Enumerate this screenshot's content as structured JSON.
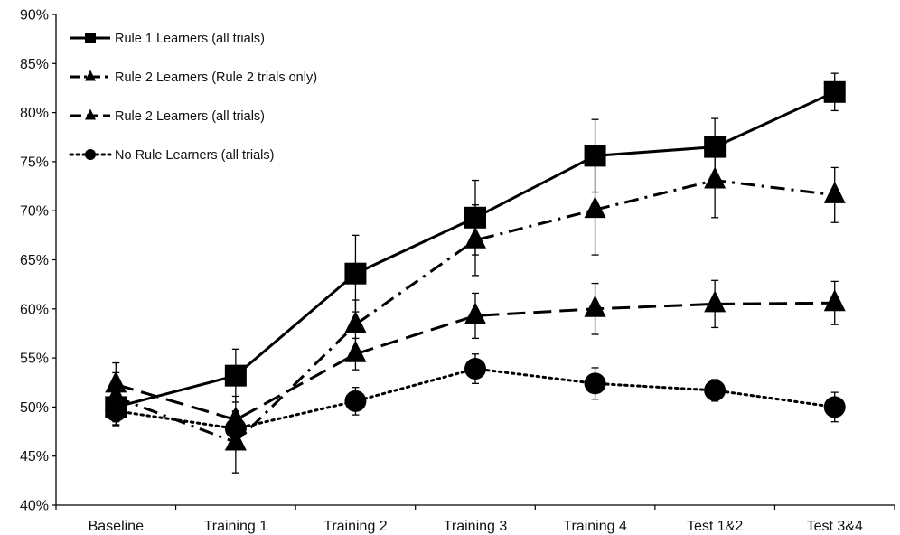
{
  "chart_data": {
    "type": "line",
    "categories": [
      "Baseline",
      "Training 1",
      "Training 2",
      "Training 3",
      "Training 4",
      "Test 1&2",
      "Test 3&4"
    ],
    "ylim": [
      40,
      90
    ],
    "yticks": [
      40,
      45,
      50,
      55,
      60,
      65,
      70,
      75,
      80,
      85,
      90
    ],
    "ytick_suffix": "%",
    "legend_position": "top-left",
    "grid": false,
    "series": [
      {
        "name": "Rule 1 Learners (all trials)",
        "marker": "square",
        "line_style": "solid",
        "color": "#000000",
        "values": [
          50.0,
          53.2,
          63.6,
          69.3,
          75.6,
          76.5,
          82.1
        ],
        "error": [
          1.9,
          2.7,
          3.9,
          3.8,
          3.7,
          2.9,
          1.9
        ]
      },
      {
        "name": "Rule 2 Learners (Rule 2 trials only)",
        "marker": "triangle",
        "line_style": "dash-dot",
        "color": "#000000",
        "values": [
          51.0,
          46.4,
          58.4,
          67.0,
          70.1,
          73.1,
          71.6
        ],
        "error": [
          2.5,
          3.1,
          2.5,
          3.6,
          4.6,
          3.8,
          2.8
        ]
      },
      {
        "name": "Rule 2 Learners (all trials)",
        "marker": "triangle",
        "line_style": "long-dash",
        "color": "#000000",
        "values": [
          52.3,
          48.7,
          55.4,
          59.3,
          60.0,
          60.5,
          60.6
        ],
        "error": [
          2.2,
          2.4,
          1.6,
          2.3,
          2.6,
          2.4,
          2.2
        ]
      },
      {
        "name": "No Rule Learners (all trials)",
        "marker": "circle",
        "line_style": "dotted",
        "color": "#000000",
        "values": [
          49.6,
          47.8,
          50.6,
          53.9,
          52.4,
          51.7,
          50.0
        ],
        "error": [
          1.4,
          1.8,
          1.4,
          1.5,
          1.6,
          1.1,
          1.5
        ]
      }
    ]
  }
}
